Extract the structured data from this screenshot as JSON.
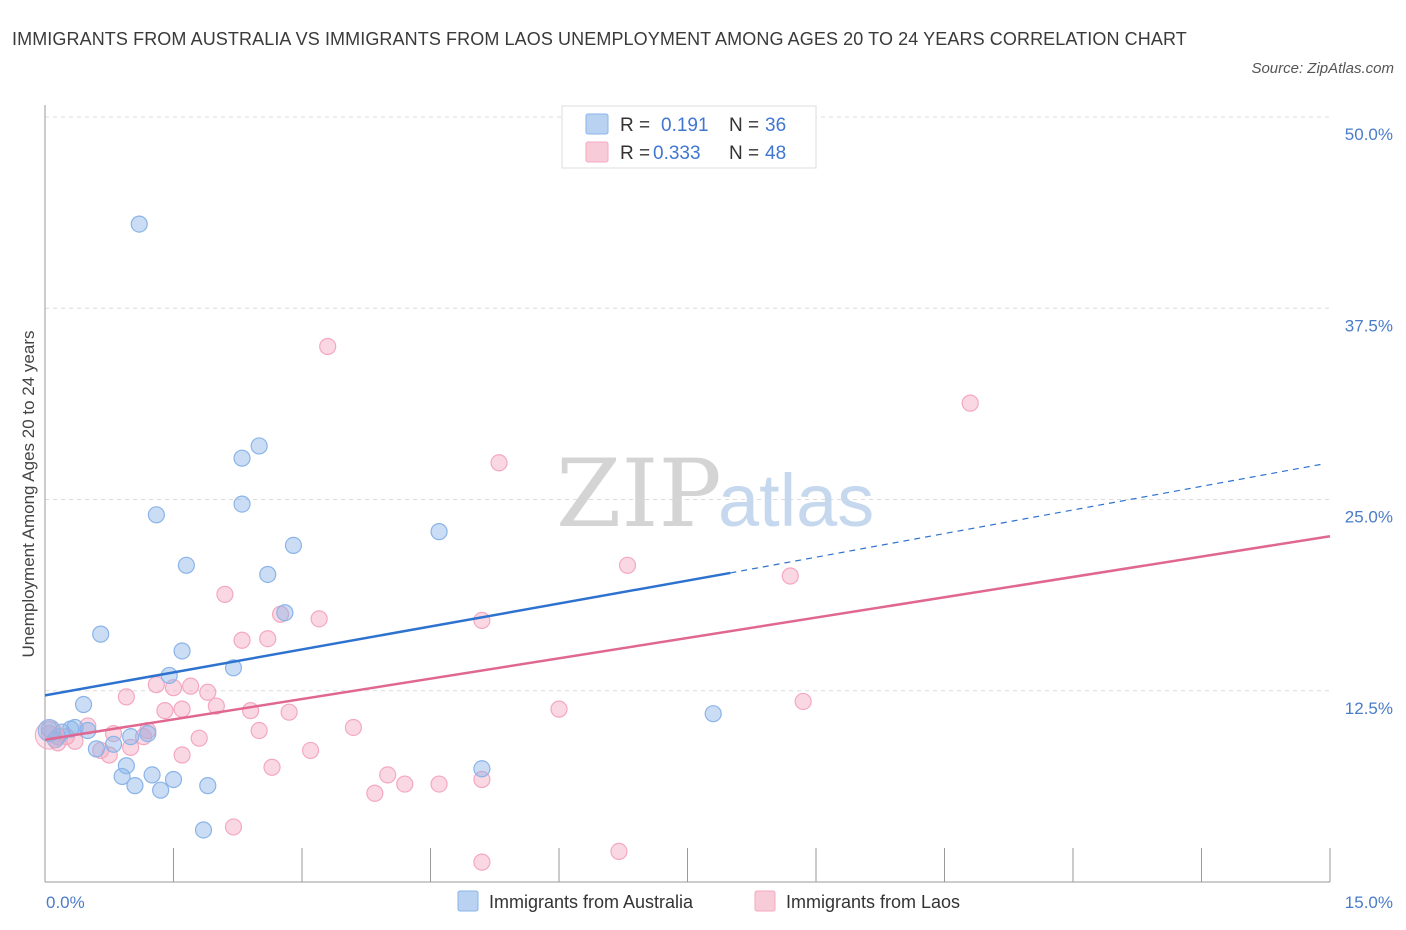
{
  "title": "IMMIGRANTS FROM AUSTRALIA VS IMMIGRANTS FROM LAOS UNEMPLOYMENT AMONG AGES 20 TO 24 YEARS CORRELATION CHART",
  "source": "Source: ZipAtlas.com",
  "watermark": {
    "zip": "ZIP",
    "atlas": "atlas"
  },
  "legend": {
    "rows": [
      {
        "r_label": "R =",
        "r_value": "0.191",
        "n_label": "N =",
        "n_value": "36"
      },
      {
        "r_label": "R =",
        "r_value": "0.333",
        "n_label": "N =",
        "n_value": "48"
      }
    ]
  },
  "chart_data": {
    "type": "scatter",
    "ylabel": "Unemployment Among Ages 20 to 24 years",
    "xlim": [
      0,
      15
    ],
    "ylim": [
      0,
      50
    ],
    "x_tick_labels": [
      "0.0%",
      "15.0%"
    ],
    "y_ticks": [
      12.5,
      25.0,
      37.5,
      50.0
    ],
    "y_tick_labels": [
      "12.5%",
      "25.0%",
      "37.5%",
      "50.0%"
    ],
    "grid": true,
    "legend_position": "top-center",
    "series": [
      {
        "name": "Immigrants from Australia",
        "color": "#8ab4e8",
        "line_color": "#2e72cf",
        "trend": {
          "x0": 0,
          "y0": 12.2,
          "x1": 8.0,
          "y1": 20.2,
          "dash_to_x": 14.9,
          "dash_to_y": 27.3
        },
        "points": [
          [
            0.05,
            10.0
          ],
          [
            0.12,
            9.3
          ],
          [
            0.2,
            9.8
          ],
          [
            0.3,
            10.0
          ],
          [
            0.35,
            10.1
          ],
          [
            0.45,
            11.6
          ],
          [
            0.5,
            9.9
          ],
          [
            0.6,
            8.7
          ],
          [
            0.65,
            16.2
          ],
          [
            0.8,
            9.0
          ],
          [
            0.9,
            6.9
          ],
          [
            0.95,
            7.6
          ],
          [
            1.0,
            9.5
          ],
          [
            1.05,
            6.3
          ],
          [
            1.1,
            43.0
          ],
          [
            1.2,
            9.7
          ],
          [
            1.25,
            7.0
          ],
          [
            1.3,
            24.0
          ],
          [
            1.35,
            6.0
          ],
          [
            1.45,
            13.5
          ],
          [
            1.5,
            6.7
          ],
          [
            1.6,
            15.1
          ],
          [
            1.65,
            20.7
          ],
          [
            1.85,
            3.4
          ],
          [
            1.9,
            6.3
          ],
          [
            2.2,
            14.0
          ],
          [
            2.3,
            27.7
          ],
          [
            2.3,
            24.7
          ],
          [
            2.5,
            28.5
          ],
          [
            2.6,
            20.1
          ],
          [
            2.8,
            17.6
          ],
          [
            2.9,
            22.0
          ],
          [
            4.6,
            22.9
          ],
          [
            5.1,
            7.4
          ],
          [
            7.8,
            11.0
          ],
          [
            0.15,
            9.5
          ]
        ]
      },
      {
        "name": "Immigrants from Laos",
        "color": "#f4a8c0",
        "line_color": "#e06890",
        "trend": {
          "x0": 0,
          "y0": 9.3,
          "x1": 15.0,
          "y1": 22.6
        },
        "points": [
          [
            0.05,
            9.7
          ],
          [
            0.15,
            9.1
          ],
          [
            0.25,
            9.5
          ],
          [
            0.35,
            9.2
          ],
          [
            0.5,
            10.2
          ],
          [
            0.65,
            8.6
          ],
          [
            0.75,
            8.3
          ],
          [
            0.8,
            9.7
          ],
          [
            0.95,
            12.1
          ],
          [
            1.0,
            8.8
          ],
          [
            1.15,
            9.5
          ],
          [
            1.2,
            9.9
          ],
          [
            1.3,
            12.9
          ],
          [
            1.4,
            11.2
          ],
          [
            1.5,
            12.7
          ],
          [
            1.6,
            11.3
          ],
          [
            1.6,
            8.3
          ],
          [
            1.7,
            12.8
          ],
          [
            1.8,
            9.4
          ],
          [
            1.9,
            12.4
          ],
          [
            2.0,
            11.5
          ],
          [
            2.1,
            18.8
          ],
          [
            2.2,
            3.6
          ],
          [
            2.3,
            15.8
          ],
          [
            2.4,
            11.2
          ],
          [
            2.5,
            9.9
          ],
          [
            2.6,
            15.9
          ],
          [
            2.65,
            7.5
          ],
          [
            2.75,
            17.5
          ],
          [
            2.85,
            11.1
          ],
          [
            3.1,
            8.6
          ],
          [
            3.2,
            17.2
          ],
          [
            3.3,
            35.0
          ],
          [
            3.6,
            10.1
          ],
          [
            3.85,
            5.8
          ],
          [
            4.0,
            7.0
          ],
          [
            4.2,
            6.4
          ],
          [
            4.6,
            6.4
          ],
          [
            5.1,
            6.7
          ],
          [
            5.1,
            17.1
          ],
          [
            5.1,
            1.3
          ],
          [
            5.3,
            27.4
          ],
          [
            6.0,
            11.3
          ],
          [
            6.7,
            2.0
          ],
          [
            6.8,
            20.7
          ],
          [
            8.7,
            20.0
          ],
          [
            8.85,
            11.8
          ],
          [
            10.8,
            31.3
          ]
        ]
      }
    ]
  }
}
